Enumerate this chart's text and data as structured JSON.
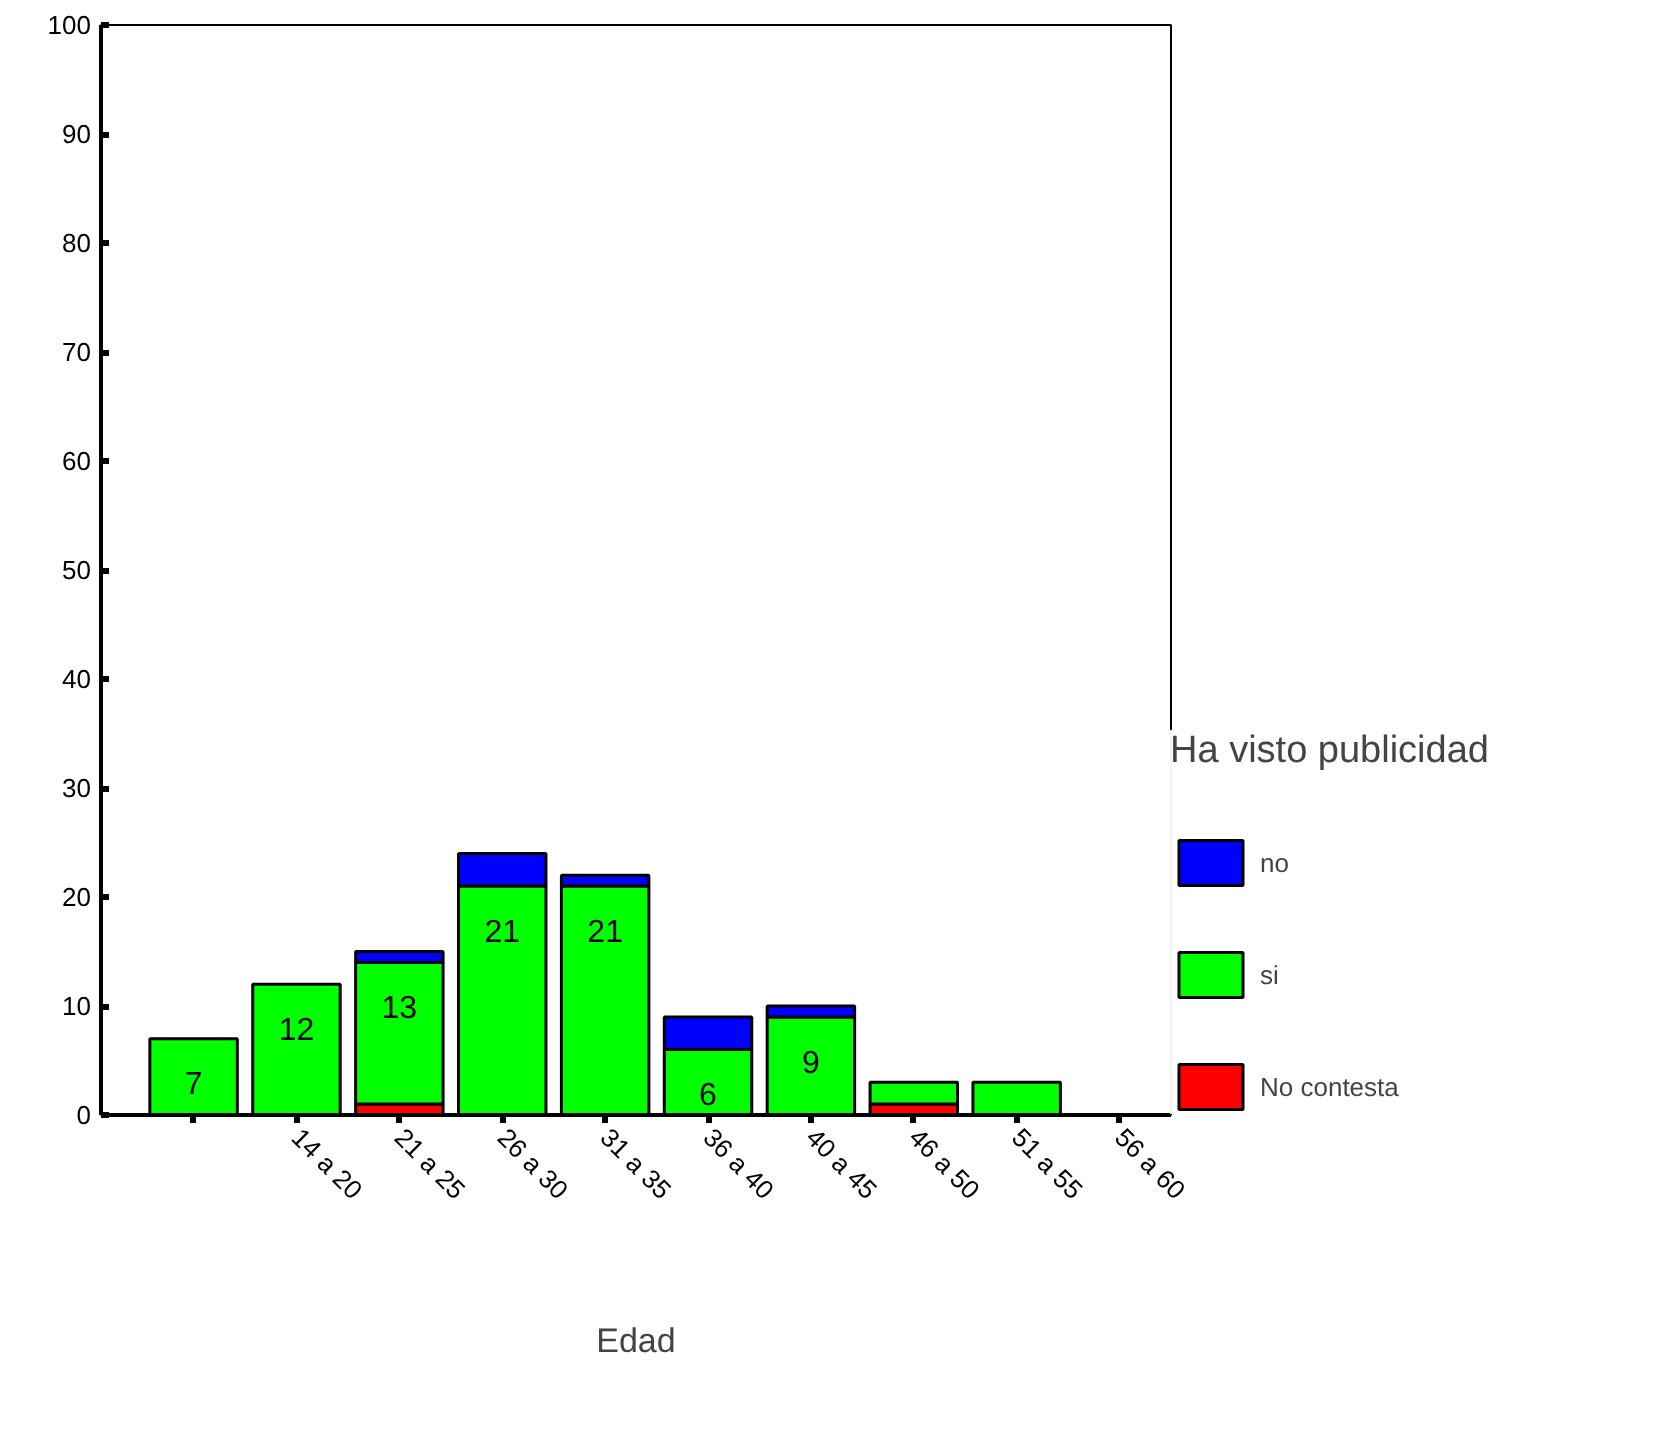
{
  "chart_data": {
    "type": "bar",
    "stacked": true,
    "xlabel": "Edad",
    "legend_title": "Ha visto publicidad",
    "legend": "right",
    "grid": false,
    "categories": [
      null,
      "14 a 20",
      "21 a 25",
      "26 a 30",
      "31 a 35",
      "36 a 40",
      "40 a 45",
      "46 a 50",
      "51 a 55",
      "56 a 60"
    ],
    "ylim": [
      0,
      100
    ],
    "yticks": [
      0,
      10,
      20,
      30,
      40,
      50,
      60,
      70,
      80,
      90,
      100
    ],
    "series": [
      {
        "name": "No contesta",
        "color": "#ff0000",
        "values": [
          0,
          0,
          1,
          0,
          0,
          0,
          0,
          1,
          0,
          0
        ]
      },
      {
        "name": "si",
        "color": "#00ff00",
        "values": [
          7,
          12,
          13,
          21,
          21,
          6,
          9,
          2,
          3,
          0
        ],
        "value_labels": [
          "7",
          "12",
          "13",
          "21",
          "21",
          "6",
          "9",
          null,
          null,
          null
        ]
      },
      {
        "name": "no",
        "color": "#0000ff",
        "values": [
          0,
          0,
          1,
          3,
          1,
          3,
          1,
          0,
          0,
          0
        ]
      }
    ]
  }
}
